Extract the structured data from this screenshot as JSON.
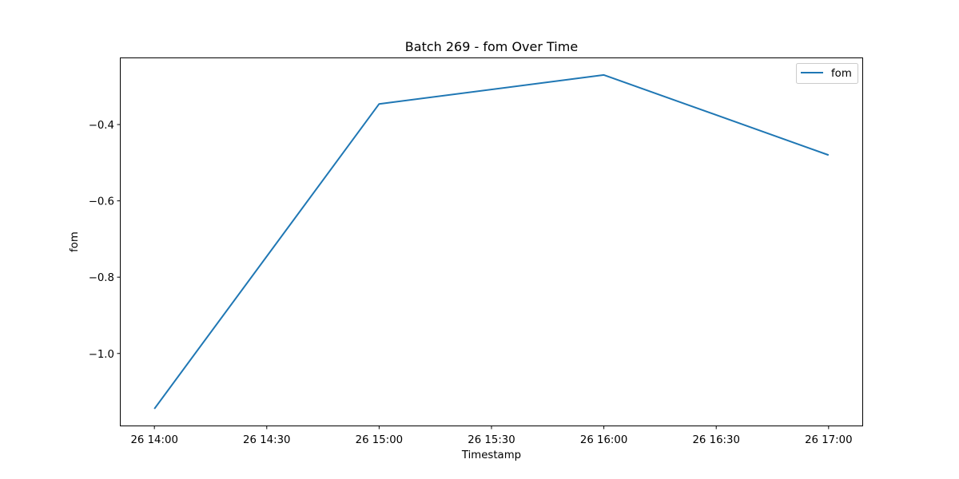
{
  "chart_data": {
    "type": "line",
    "title": "Batch 269 - fom Over Time",
    "xlabel": "Timestamp",
    "ylabel": "fom",
    "x": [
      "26 14:00",
      "26 15:00",
      "26 16:00",
      "26 17:00"
    ],
    "x_minutes": [
      840,
      900,
      960,
      1020
    ],
    "series": [
      {
        "name": "fom",
        "color": "#1f77b4",
        "values": [
          -1.145,
          -0.346,
          -0.27,
          -0.48
        ]
      }
    ],
    "xticks": [
      {
        "label": "26 14:00",
        "minutes": 840
      },
      {
        "label": "26 14:30",
        "minutes": 870
      },
      {
        "label": "26 15:00",
        "minutes": 900
      },
      {
        "label": "26 15:30",
        "minutes": 930
      },
      {
        "label": "26 16:00",
        "minutes": 960
      },
      {
        "label": "26 16:30",
        "minutes": 990
      },
      {
        "label": "26 17:00",
        "minutes": 1020
      }
    ],
    "yticks": [
      {
        "label": "−1.0",
        "value": -1.0
      },
      {
        "label": "−0.8",
        "value": -0.8
      },
      {
        "label": "−0.6",
        "value": -0.6
      },
      {
        "label": "−0.4",
        "value": -0.4
      }
    ],
    "xlim": [
      831,
      1029
    ],
    "ylim": [
      -1.1888,
      -0.2263
    ],
    "grid": false,
    "legend_position": "top-right"
  }
}
